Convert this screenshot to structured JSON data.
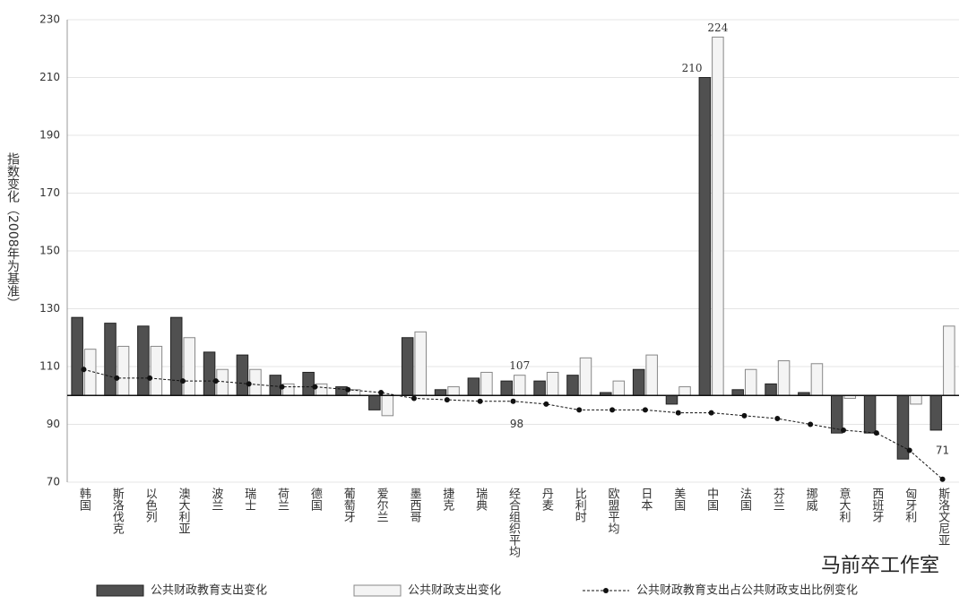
{
  "chart_data": {
    "type": "bar",
    "y_label": "指数变化（2008年为基准）",
    "categories": [
      "韩国",
      "斯洛伐克",
      "以色列",
      "澳大利亚",
      "波兰",
      "瑞士",
      "荷兰",
      "德国",
      "葡萄牙",
      "爱尔兰",
      "墨西哥",
      "捷克",
      "瑞典",
      "经合组织平均",
      "丹麦",
      "比利时",
      "欧盟平均",
      "日本",
      "美国",
      "中国",
      "法国",
      "芬兰",
      "挪威",
      "意大利",
      "西班牙",
      "匈牙利",
      "斯洛文尼亚"
    ],
    "series": [
      {
        "name": "公共财政教育支出变化",
        "type": "bar",
        "color": "#505050",
        "values": [
          127,
          125,
          124,
          127,
          115,
          114,
          107,
          108,
          103,
          95,
          120,
          102,
          106,
          105,
          105,
          107,
          101,
          109,
          97,
          210,
          102,
          104,
          101,
          87,
          87,
          78,
          88
        ],
        "value_labels": [
          null,
          null,
          null,
          null,
          null,
          null,
          null,
          null,
          null,
          null,
          null,
          null,
          null,
          null,
          null,
          null,
          null,
          null,
          null,
          "210",
          null,
          null,
          null,
          null,
          null,
          null,
          null
        ]
      },
      {
        "name": "公共财政支出变化",
        "type": "bar",
        "color": "#f4f4f4",
        "values": [
          116,
          117,
          117,
          120,
          109,
          109,
          104,
          104,
          102,
          93,
          122,
          103,
          108,
          107,
          108,
          113,
          105,
          114,
          103,
          224,
          109,
          112,
          111,
          99,
          100,
          97,
          124
        ],
        "value_labels": [
          null,
          null,
          null,
          null,
          null,
          null,
          null,
          null,
          null,
          null,
          null,
          null,
          null,
          "107",
          null,
          null,
          null,
          null,
          null,
          "224",
          null,
          null,
          null,
          null,
          null,
          null,
          null
        ]
      },
      {
        "name": "公共财政教育支出占公共财政支出比例变化",
        "type": "line",
        "color": "#111111",
        "values": [
          109,
          106,
          106,
          105,
          105,
          104,
          103,
          103,
          102,
          101,
          99,
          98.5,
          98,
          98,
          97,
          95,
          95,
          95,
          94,
          94,
          93,
          92,
          90,
          88,
          87,
          81,
          71
        ],
        "value_labels": [
          null,
          null,
          null,
          null,
          null,
          null,
          null,
          null,
          null,
          null,
          null,
          null,
          null,
          "98",
          null,
          null,
          null,
          null,
          null,
          null,
          null,
          null,
          null,
          null,
          null,
          null,
          "71"
        ]
      }
    ],
    "ylim": [
      70,
      230
    ],
    "yticks": [
      70,
      90,
      110,
      130,
      150,
      170,
      190,
      210,
      230
    ],
    "baseline": 100,
    "grid": true,
    "watermark": "马前卒工作室"
  }
}
